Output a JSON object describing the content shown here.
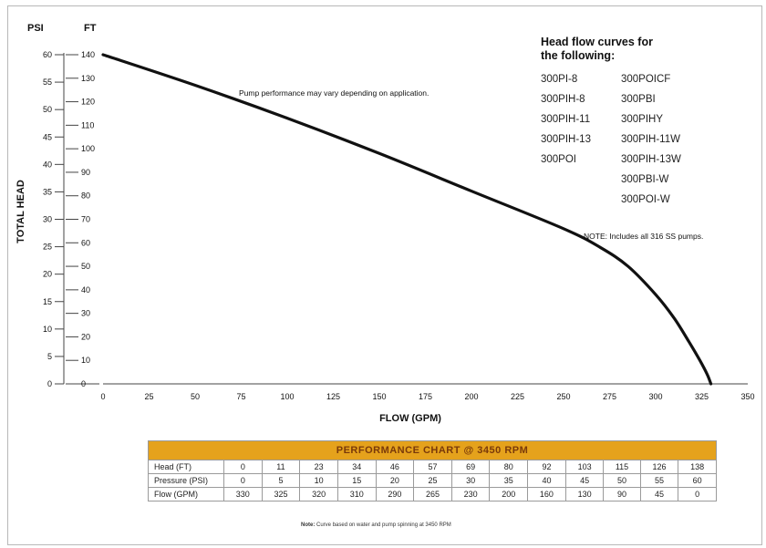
{
  "chart_data": {
    "type": "line",
    "xlabel": "FLOW (GPM)",
    "ylabel": "TOTAL HEAD",
    "y_units_left": "PSI",
    "y_units_right": "FT",
    "xlim": [
      0,
      350
    ],
    "ylim_ft": [
      0,
      140
    ],
    "ylim_psi": [
      0,
      60
    ],
    "x_ticks": [
      "0",
      "25",
      "50",
      "75",
      "100",
      "125",
      "150",
      "175",
      "200",
      "225",
      "250",
      "275",
      "300",
      "325",
      "350"
    ],
    "ft_ticks": [
      "0",
      "10",
      "20",
      "30",
      "40",
      "50",
      "60",
      "70",
      "80",
      "90",
      "100",
      "110",
      "120",
      "130",
      "140"
    ],
    "psi_ticks": [
      "0",
      "5",
      "10",
      "15",
      "20",
      "25",
      "30",
      "35",
      "40",
      "45",
      "50",
      "55",
      "60"
    ],
    "grid": false,
    "series": [
      {
        "x": [
          0,
          50,
          100,
          150,
          200,
          250,
          270,
          285,
          300,
          310,
          318,
          324,
          328,
          330
        ],
        "y": [
          140,
          127,
          113,
          98,
          82,
          66,
          58,
          50,
          38,
          28,
          18,
          10,
          4,
          0
        ]
      }
    ],
    "annotations": {
      "performance_note": "Pump performance may vary depending on application.",
      "includes_note": "NOTE: Includes all 316 SS pumps."
    },
    "models_title_line1": "Head flow curves for",
    "models_title_line2": "the following:",
    "models_col1": [
      "300PI-8",
      "300PIH-8",
      "300PIH-11",
      "300PIH-13",
      "300POI"
    ],
    "models_col2": [
      "300POICF",
      "300PBI",
      "300PIHY",
      "300PIH-11W",
      "300PIH-13W",
      "300PBI-W",
      "300POI-W"
    ]
  },
  "table": {
    "title": "PERFORMANCE CHART @ 3450 RPM",
    "rows": [
      {
        "label": "Head (FT)",
        "values": [
          "0",
          "11",
          "23",
          "34",
          "46",
          "57",
          "69",
          "80",
          "92",
          "103",
          "115",
          "126",
          "138"
        ]
      },
      {
        "label": "Pressure (PSI)",
        "values": [
          "0",
          "5",
          "10",
          "15",
          "20",
          "25",
          "30",
          "35",
          "40",
          "45",
          "50",
          "55",
          "60"
        ]
      },
      {
        "label": "Flow (GPM)",
        "values": [
          "330",
          "325",
          "320",
          "310",
          "290",
          "265",
          "230",
          "200",
          "160",
          "130",
          "90",
          "45",
          "0"
        ]
      }
    ]
  },
  "footnote": {
    "label": "Note:",
    "text": "Curve based on water and pump spinning at 3450 RPM"
  }
}
